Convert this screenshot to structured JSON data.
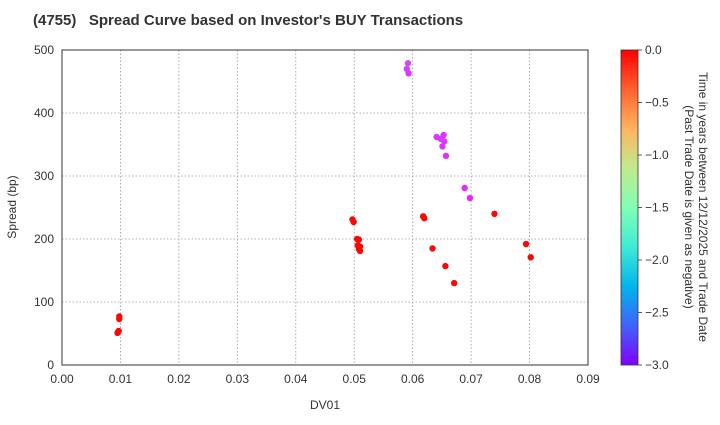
{
  "chart_data": {
    "type": "scatter",
    "title": "(4755)   Spread Curve based on Investor's BUY Transactions",
    "xlabel": "DV01",
    "ylabel": "Spread (bp)",
    "xlim": [
      0.0,
      0.09
    ],
    "ylim": [
      0,
      500
    ],
    "xticks": [
      "0.00",
      "0.01",
      "0.02",
      "0.03",
      "0.04",
      "0.05",
      "0.06",
      "0.07",
      "0.08",
      "0.09"
    ],
    "yticks": [
      "0",
      "100",
      "200",
      "300",
      "400",
      "500"
    ],
    "grid": true,
    "colorbar": {
      "label_line1": "Time in years between 12/12/2025 and Trade Date",
      "label_line2": "(Past Trade Date is given as negative)",
      "range": [
        -3.0,
        0.0
      ],
      "ticks": [
        "0.0",
        "−0.5",
        "−1.0",
        "−1.5",
        "−2.0",
        "−2.5",
        "−3.0"
      ],
      "colormap": "rainbow",
      "position": "right"
    },
    "points": [
      {
        "x": 0.0098,
        "y": 77,
        "t": -0.02
      },
      {
        "x": 0.0098,
        "y": 73,
        "t": -0.03
      },
      {
        "x": 0.0097,
        "y": 54,
        "t": -0.02
      },
      {
        "x": 0.0095,
        "y": 51,
        "t": -0.03
      },
      {
        "x": 0.0497,
        "y": 231,
        "t": -0.02
      },
      {
        "x": 0.0499,
        "y": 227,
        "t": -0.03
      },
      {
        "x": 0.0505,
        "y": 200,
        "t": -0.02
      },
      {
        "x": 0.0508,
        "y": 199,
        "t": -0.03
      },
      {
        "x": 0.0506,
        "y": 190,
        "t": -0.02
      },
      {
        "x": 0.051,
        "y": 188,
        "t": -0.02
      },
      {
        "x": 0.0508,
        "y": 184,
        "t": -0.03
      },
      {
        "x": 0.051,
        "y": 181,
        "t": -0.02
      },
      {
        "x": 0.0592,
        "y": 479,
        "t": -2.72
      },
      {
        "x": 0.059,
        "y": 470,
        "t": -2.75
      },
      {
        "x": 0.0593,
        "y": 463,
        "t": -2.8
      },
      {
        "x": 0.0641,
        "y": 362,
        "t": -2.78
      },
      {
        "x": 0.0648,
        "y": 359,
        "t": -2.78
      },
      {
        "x": 0.0653,
        "y": 365,
        "t": -2.8
      },
      {
        "x": 0.0654,
        "y": 355,
        "t": -2.8
      },
      {
        "x": 0.0651,
        "y": 347,
        "t": -2.8
      },
      {
        "x": 0.0657,
        "y": 332,
        "t": -2.82
      },
      {
        "x": 0.0689,
        "y": 281,
        "t": -2.85
      },
      {
        "x": 0.0698,
        "y": 265,
        "t": -2.85
      },
      {
        "x": 0.0618,
        "y": 236,
        "t": -0.03
      },
      {
        "x": 0.062,
        "y": 233,
        "t": -0.03
      },
      {
        "x": 0.0634,
        "y": 185,
        "t": -0.05
      },
      {
        "x": 0.0656,
        "y": 157,
        "t": -0.03
      },
      {
        "x": 0.0671,
        "y": 130,
        "t": -0.03
      },
      {
        "x": 0.074,
        "y": 240,
        "t": -0.03
      },
      {
        "x": 0.0794,
        "y": 192,
        "t": -0.02
      },
      {
        "x": 0.0802,
        "y": 171,
        "t": -0.02
      }
    ]
  }
}
